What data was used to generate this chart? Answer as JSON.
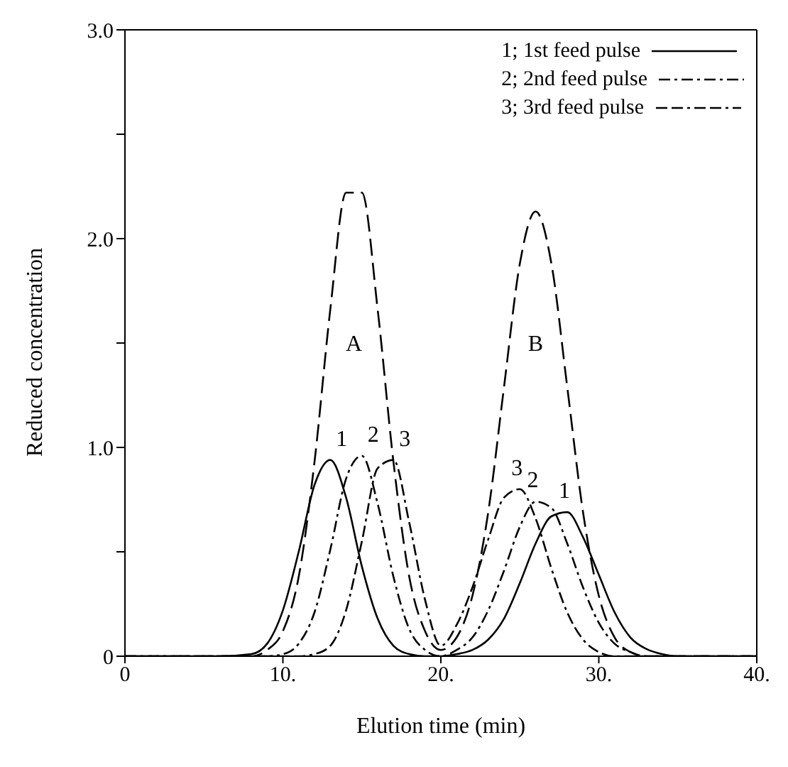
{
  "chart_data": {
    "type": "line",
    "xlabel": "Elution time (min)",
    "ylabel": "Reduced concentration",
    "x": [
      0,
      2,
      4,
      6,
      8,
      9,
      10,
      11,
      12,
      13,
      14,
      15,
      16,
      17,
      18,
      19,
      20,
      21,
      22,
      23,
      24,
      25,
      26,
      27,
      28,
      29,
      30,
      31,
      32,
      33,
      34,
      35,
      36,
      38,
      40
    ],
    "series": [
      {
        "name": "1; 1st feed pulse",
        "color": "#000000",
        "line_style": "solid",
        "values": [
          0,
          0,
          0,
          0,
          0.01,
          0.06,
          0.22,
          0.5,
          0.82,
          0.94,
          0.76,
          0.43,
          0.18,
          0.05,
          0.01,
          0,
          0,
          0.01,
          0.03,
          0.08,
          0.18,
          0.35,
          0.54,
          0.67,
          0.69,
          0.57,
          0.39,
          0.21,
          0.09,
          0.035,
          0.01,
          0,
          0,
          0,
          0
        ]
      },
      {
        "name": "2; 2nd feed pulse",
        "color": "#000000",
        "line_style": "dashed",
        "values": [
          0,
          0,
          0,
          0,
          0,
          0,
          0.01,
          0.06,
          0.21,
          0.51,
          0.85,
          0.96,
          0.73,
          0.38,
          0.13,
          0.03,
          0,
          0.03,
          0.09,
          0.22,
          0.41,
          0.62,
          0.74,
          0.71,
          0.54,
          0.33,
          0.16,
          0.06,
          0.02,
          0,
          0,
          0,
          0,
          0,
          0
        ]
      },
      {
        "name": "3; 3rd feed pulse",
        "color": "#000000",
        "line_style": "dashed",
        "values": [
          0,
          0,
          0,
          0,
          0,
          0,
          0,
          0,
          0.01,
          0.05,
          0.22,
          0.55,
          0.9,
          0.94,
          0.64,
          0.27,
          0.05,
          0.15,
          0.33,
          0.56,
          0.76,
          0.8,
          0.66,
          0.42,
          0.21,
          0.08,
          0.02,
          0,
          0,
          0,
          0,
          0,
          0,
          0,
          0
        ]
      },
      {
        "color": "#000000",
        "line_style": "dashed",
        "values": [
          0,
          0,
          0,
          0,
          0,
          0.03,
          0.12,
          0.38,
          0.93,
          1.66,
          2.22,
          2.22,
          1.66,
          0.93,
          0.38,
          0.12,
          0.03,
          0.09,
          0.29,
          0.69,
          1.29,
          1.88,
          2.13,
          1.88,
          1.29,
          0.69,
          0.29,
          0.09,
          0.02,
          0,
          0,
          0,
          0,
          0,
          0
        ]
      }
    ],
    "xlim": [
      0,
      40
    ],
    "xticks": [
      0,
      {
        "value": 10,
        "label": "10."
      },
      {
        "value": 20,
        "label": "20."
      },
      {
        "value": 30,
        "label": "30."
      },
      {
        "value": 40,
        "label": "40."
      }
    ],
    "ylim": [
      0,
      3
    ],
    "yticks": [
      0,
      {
        "value": 0.5,
        "label": null
      },
      {
        "value": 1,
        "label": "1.0"
      },
      {
        "value": 1.5,
        "label": null
      },
      {
        "value": 2,
        "label": "2.0"
      },
      {
        "value": 2.5,
        "label": null
      },
      {
        "value": 3,
        "label": "3.0"
      }
    ],
    "grid": false,
    "legend": "top right",
    "marker": "none",
    "annotations": [
      "A",
      "B",
      {
        "text": "1",
        "x": 13,
        "y": 0.94
      },
      {
        "text": "2",
        "x": 15,
        "y": 0.96
      },
      {
        "text": "3",
        "x": 17,
        "y": 0.94
      },
      {
        "text": "3",
        "x": 25,
        "y": 0.8
      },
      {
        "text": "2",
        "x": 26,
        "y": 0.74
      },
      {
        "text": "1",
        "x": 28,
        "y": 0.69
      }
    ]
  }
}
